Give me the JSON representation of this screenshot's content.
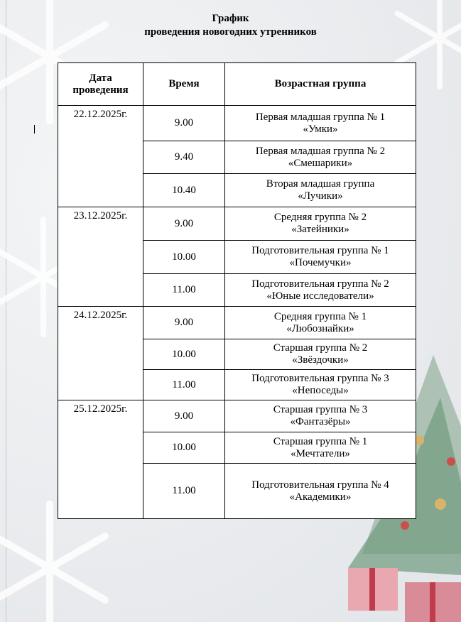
{
  "title": {
    "line1": "График",
    "line2": "проведения новогодних утренников"
  },
  "table": {
    "headers": [
      "Дата проведения",
      "Время",
      "Возрастная группа"
    ],
    "days": [
      {
        "date": "22.12.2025г.",
        "rows": [
          {
            "time": "9.00",
            "group": "Первая младшая группа № 1",
            "name": "«Умки»"
          },
          {
            "time": "9.40",
            "group": "Первая младшая группа № 2",
            "name": "«Смешарики»"
          },
          {
            "time": "10.40",
            "group": "Вторая младшая группа",
            "name": "«Лучики»"
          }
        ]
      },
      {
        "date": "23.12.2025г.",
        "rows": [
          {
            "time": "9.00",
            "group": "Средняя группа № 2",
            "name": "«Затейники»"
          },
          {
            "time": "10.00",
            "group": "Подготовительная группа № 1",
            "name": "«Почемучки»"
          },
          {
            "time": "11.00",
            "group": "Подготовительная группа № 2",
            "name": "«Юные исследователи»"
          }
        ]
      },
      {
        "date": "24.12.2025г.",
        "rows": [
          {
            "time": "9.00",
            "group": "Средняя группа № 1",
            "name": "«Любознайки»"
          },
          {
            "time": "10.00",
            "group": "Старшая группа № 2",
            "name": "«Звёздочки»"
          },
          {
            "time": "11.00",
            "group": "Подготовительная группа № 3",
            "name": "«Непоседы»"
          }
        ]
      },
      {
        "date": "25.12.2025г.",
        "rows": [
          {
            "time": "9.00",
            "group": "Старшая группа № 3",
            "name": "«Фантазёры»"
          },
          {
            "time": "10.00",
            "group": "Старшая группа № 1",
            "name": "«Мечтатели»"
          },
          {
            "time": "11.00",
            "group": "Подготовительная группа № 4",
            "name": "«Академики»"
          }
        ]
      }
    ]
  }
}
